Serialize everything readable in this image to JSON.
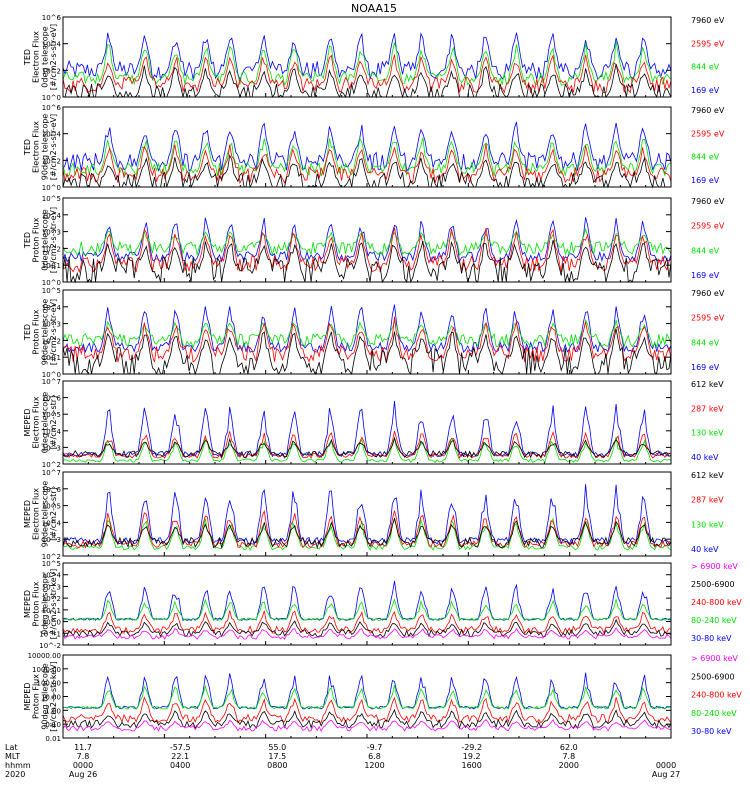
{
  "title": "NOAA15",
  "colors": {
    "black": "#000000",
    "blue": "#0000ff",
    "red": "#ff0000",
    "green": "#00e000",
    "magenta": "#ff00ff"
  },
  "chart_data": [
    {
      "type": "line",
      "ylabel": [
        "TED",
        "Electron Flux",
        "0deg telescope",
        "[#/cm2-s-str-eV]"
      ],
      "y_log_range": [
        0,
        6
      ],
      "ytick_labels": [
        "10^0",
        "10^2",
        "10^4",
        "10^6"
      ],
      "ytick_exps": [
        0,
        2,
        4,
        6
      ],
      "series": [
        {
          "name": "7960 eV",
          "color": "black",
          "base": 0.2,
          "amp": 2.4,
          "noise": 0.8
        },
        {
          "name": "2595 eV",
          "color": "red",
          "base": 0.9,
          "amp": 2.6,
          "noise": 0.6
        },
        {
          "name": "844 eV",
          "color": "green",
          "base": 1.4,
          "amp": 3.0,
          "noise": 0.5
        },
        {
          "name": "169 eV",
          "color": "blue",
          "base": 2.0,
          "amp": 3.3,
          "noise": 0.7
        }
      ]
    },
    {
      "type": "line",
      "ylabel": [
        "TED",
        "Electron Flux",
        "90deg telescope",
        "[#/cm2-s-str-eV]"
      ],
      "y_log_range": [
        0,
        6
      ],
      "ytick_labels": [
        "10^0",
        "10^2",
        "10^4",
        "10^6"
      ],
      "ytick_exps": [
        0,
        2,
        4,
        6
      ],
      "series": [
        {
          "name": "7960 eV",
          "color": "black",
          "base": 0.3,
          "amp": 2.3,
          "noise": 0.8
        },
        {
          "name": "2595 eV",
          "color": "red",
          "base": 0.9,
          "amp": 2.5,
          "noise": 0.6
        },
        {
          "name": "844 eV",
          "color": "green",
          "base": 1.3,
          "amp": 2.9,
          "noise": 0.5
        },
        {
          "name": "169 eV",
          "color": "blue",
          "base": 1.9,
          "amp": 3.4,
          "noise": 0.7
        }
      ]
    },
    {
      "type": "line",
      "ylabel": [
        "TED",
        "Proton Flux",
        "0deg telescope",
        "[#/cm2-s-str-eV]"
      ],
      "y_log_range": [
        0,
        5
      ],
      "ytick_labels": [
        "10^0",
        "10^1",
        "10^2",
        "10^3",
        "10^4",
        "10^5"
      ],
      "ytick_exps": [
        0,
        1,
        2,
        3,
        4,
        5
      ],
      "series": [
        {
          "name": "7960 eV",
          "color": "black",
          "base": 0.6,
          "amp": 2.2,
          "noise": 0.9
        },
        {
          "name": "2595 eV",
          "color": "red",
          "base": 1.1,
          "amp": 2.3,
          "noise": 0.5
        },
        {
          "name": "844 eV",
          "color": "green",
          "base": 2.0,
          "amp": 1.2,
          "noise": 0.4
        },
        {
          "name": "169 eV",
          "color": "blue",
          "base": 1.5,
          "amp": 2.6,
          "noise": 0.3
        }
      ]
    },
    {
      "type": "line",
      "ylabel": [
        "TED",
        "Proton Flux",
        "90deg telescope",
        "[#/cm2-s-str-eV]"
      ],
      "y_log_range": [
        0,
        5
      ],
      "ytick_labels": [
        "10^0",
        "10^1",
        "10^2",
        "10^3",
        "10^4",
        "10^5"
      ],
      "ytick_exps": [
        0,
        1,
        2,
        3,
        4,
        5
      ],
      "series": [
        {
          "name": "7960 eV",
          "color": "black",
          "base": 0.7,
          "amp": 2.2,
          "noise": 0.9
        },
        {
          "name": "2595 eV",
          "color": "red",
          "base": 1.2,
          "amp": 2.3,
          "noise": 0.5
        },
        {
          "name": "844 eV",
          "color": "green",
          "base": 2.0,
          "amp": 1.3,
          "noise": 0.4
        },
        {
          "name": "169 eV",
          "color": "blue",
          "base": 1.6,
          "amp": 2.8,
          "noise": 0.3
        }
      ]
    },
    {
      "type": "line",
      "ylabel": [
        "MEPED",
        "Electron Flux",
        "0deg telescope",
        "[#/cm2-s-str]"
      ],
      "y_log_range": [
        2,
        7
      ],
      "ytick_labels": [
        "10^2",
        "10^3",
        "10^4",
        "10^5",
        "10^6",
        "10^7"
      ],
      "ytick_exps": [
        2,
        3,
        4,
        5,
        6,
        7
      ],
      "series": [
        {
          "name": "612 keV",
          "color": "black",
          "base": 2.6,
          "amp": 1.0,
          "noise": 0.2
        },
        {
          "name": "287 keV",
          "color": "red",
          "base": 2.5,
          "amp": 1.6,
          "noise": 0.15
        },
        {
          "name": "130 keV",
          "color": "green",
          "base": 2.2,
          "amp": 1.5,
          "noise": 0.1
        },
        {
          "name": "40 keV",
          "color": "blue",
          "base": 2.6,
          "amp": 3.3,
          "noise": 0.15
        }
      ]
    },
    {
      "type": "line",
      "ylabel": [
        "MEPED",
        "Electron Flux",
        "90deg telescope",
        "[#/cm2-s-str]"
      ],
      "y_log_range": [
        2,
        7
      ],
      "ytick_labels": [
        "10^2",
        "10^3",
        "10^4",
        "10^5",
        "10^6",
        "10^7"
      ],
      "ytick_exps": [
        2,
        3,
        4,
        5,
        6,
        7
      ],
      "series": [
        {
          "name": "612 keV",
          "color": "black",
          "base": 2.8,
          "amp": 1.5,
          "noise": 0.3
        },
        {
          "name": "287 keV",
          "color": "red",
          "base": 2.7,
          "amp": 2.2,
          "noise": 0.2
        },
        {
          "name": "130 keV",
          "color": "green",
          "base": 2.5,
          "amp": 2.0,
          "noise": 0.15
        },
        {
          "name": "40 keV",
          "color": "blue",
          "base": 2.9,
          "amp": 3.6,
          "noise": 0.2
        }
      ]
    },
    {
      "type": "line",
      "ylabel": [
        "MEPED",
        "Proton Flux",
        "0deg telescope",
        "[#/cm2-s-str-keV]"
      ],
      "y_log_range": [
        -2,
        5
      ],
      "ytick_labels": [
        "10^-2",
        "10^-1",
        "10^0",
        "10^1",
        "10^2",
        "10^3",
        "10^4",
        "10^5"
      ],
      "ytick_exps": [
        -2,
        -1,
        0,
        1,
        2,
        3,
        4,
        5
      ],
      "series": [
        {
          "name": "> 6900 keV",
          "color": "magenta",
          "base": -1.3,
          "amp": 0.8,
          "noise": 0.2
        },
        {
          "name": "2500-6900",
          "color": "black",
          "base": -1.0,
          "amp": 1.2,
          "noise": 0.3
        },
        {
          "name": "240-800 keV",
          "color": "red",
          "base": -0.7,
          "amp": 1.8,
          "noise": 0.3
        },
        {
          "name": "80-240 keV",
          "color": "green",
          "base": 0.2,
          "amp": 1.8,
          "noise": 0.1
        },
        {
          "name": "30-80 keV",
          "color": "blue",
          "base": 0.2,
          "amp": 3.4,
          "noise": 0.1
        }
      ]
    },
    {
      "type": "line",
      "ylabel": [
        "MEPED",
        "Proton Flux",
        "90deg telescope",
        "[#/cm2-s-str-keV]"
      ],
      "y_log_range": [
        -2,
        4
      ],
      "ytick_labels": [
        "0.01",
        "0.10",
        "1.00",
        "10.00",
        "100.00",
        "1000.00",
        "10000.00"
      ],
      "ytick_exps": [
        -2,
        -1,
        0,
        1,
        2,
        3,
        4
      ],
      "series": [
        {
          "name": "> 6900 keV",
          "color": "magenta",
          "base": -1.3,
          "amp": 0.7,
          "noise": 0.2
        },
        {
          "name": "2500-6900",
          "color": "black",
          "base": -1.0,
          "amp": 1.1,
          "noise": 0.3
        },
        {
          "name": "240-800 keV",
          "color": "red",
          "base": -0.6,
          "amp": 1.7,
          "noise": 0.3
        },
        {
          "name": "80-240 keV",
          "color": "green",
          "base": 0.2,
          "amp": 1.7,
          "noise": 0.1
        },
        {
          "name": "30-80 keV",
          "color": "blue",
          "base": 0.2,
          "amp": 2.8,
          "noise": 0.1
        }
      ]
    }
  ],
  "x_axis": {
    "row_labels": [
      "Lat",
      "MLT",
      "hhmm",
      "2020"
    ],
    "ticks": [
      {
        "frac": 0.0,
        "lat": "11.7",
        "mlt": "7.8",
        "hhmm": "0000",
        "date": "Aug 26"
      },
      {
        "frac": 0.1667,
        "lat": "-57.5",
        "mlt": "22.1",
        "hhmm": "0400",
        "date": ""
      },
      {
        "frac": 0.3333,
        "lat": "55.0",
        "mlt": "17.5",
        "hhmm": "0800",
        "date": ""
      },
      {
        "frac": 0.5,
        "lat": "-9.7",
        "mlt": "6.8",
        "hhmm": "1200",
        "date": ""
      },
      {
        "frac": 0.6667,
        "lat": "-29.2",
        "mlt": "19.2",
        "hhmm": "1600",
        "date": ""
      },
      {
        "frac": 0.8333,
        "lat": "62.0",
        "mlt": "7.8",
        "hhmm": "2000",
        "date": ""
      },
      {
        "frac": 1.0,
        "lat": "",
        "mlt": "",
        "hhmm": "0000",
        "date": "Aug 27"
      }
    ]
  }
}
